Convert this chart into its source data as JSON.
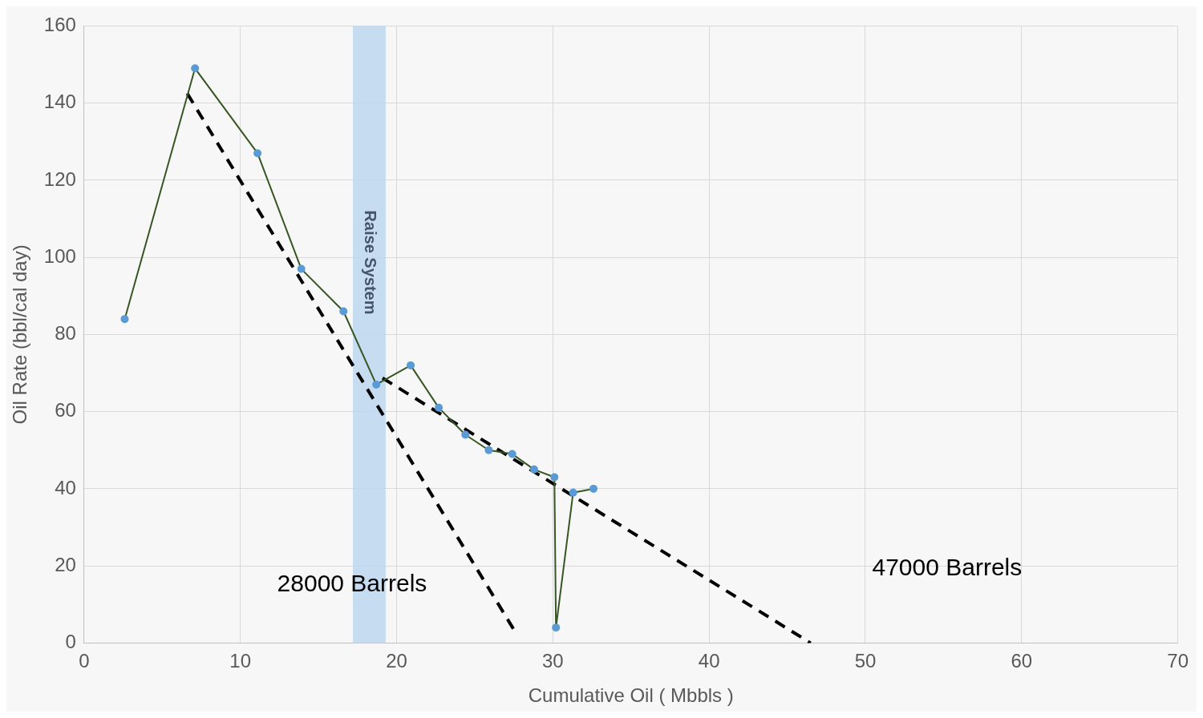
{
  "chart_data": {
    "type": "line",
    "xlabel": "Cumulative Oil ( Mbbls )",
    "ylabel": "Oil Rate (bbl/cal day)",
    "xlim": [
      0,
      70
    ],
    "xticks": [
      0,
      10,
      20,
      30,
      40,
      50,
      60,
      70
    ],
    "ylim": [
      0,
      160
    ],
    "yticks": [
      0,
      20,
      40,
      60,
      80,
      100,
      120,
      140,
      160
    ],
    "grid": true,
    "legend": false,
    "series": [
      {
        "type": "line",
        "color": "#375623",
        "marker": "circle",
        "line_style": "solid",
        "x": [
          2.6,
          7.1,
          11.1,
          13.9,
          16.6,
          18.7,
          20.9,
          22.7,
          24.4,
          25.9,
          27.4,
          28.8,
          30.1,
          30.2,
          31.3,
          32.6
        ],
        "values": [
          84,
          149,
          127,
          97,
          86,
          67,
          72,
          61,
          54,
          50,
          49,
          45,
          43,
          4,
          39,
          40
        ]
      },
      {
        "type": "line",
        "color": "#000000",
        "marker": "none",
        "line_style": "dashed",
        "x": [
          6.6,
          27.5
        ],
        "values": [
          142.5,
          3.5
        ]
      },
      {
        "type": "line",
        "color": "#000000",
        "marker": "none",
        "line_style": "dashed",
        "x": [
          19.1,
          46.5
        ],
        "values": [
          68.7,
          0
        ]
      }
    ],
    "bands": [
      {
        "axis": "x",
        "from": 17.2,
        "to": 19.3,
        "label": "Raise System",
        "color": "#bdd7ee"
      }
    ],
    "annotations": [
      "28000 Barrels",
      "47000 Barrels"
    ]
  }
}
